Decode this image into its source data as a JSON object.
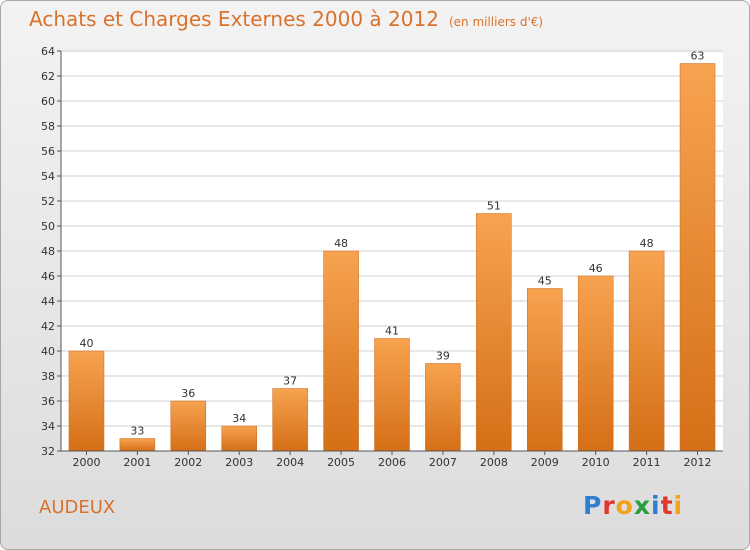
{
  "header": {
    "title": "Achats et Charges Externes 2000 à 2012",
    "subtitle": "(en milliers d'€)"
  },
  "commune": "AUDEUX",
  "logo": {
    "text": "Proxiti",
    "letter_colors": [
      "#2f7fd0",
      "#e0382c",
      "#f2a21b",
      "#2a9d3c",
      "#2f7fd0",
      "#e0382c",
      "#f2a21b"
    ]
  },
  "colors": {
    "bar_light": "#f7a350",
    "bar_dark": "#d56f17",
    "grid": "#d0d0d0",
    "axis": "#555555",
    "title": "#d9722c"
  },
  "chart_data": {
    "type": "bar",
    "title": "Achats et Charges Externes 2000 à 2012",
    "subtitle": "(en milliers d'€)",
    "categories": [
      "2000",
      "2001",
      "2002",
      "2003",
      "2004",
      "2005",
      "2006",
      "2007",
      "2008",
      "2009",
      "2010",
      "2011",
      "2012"
    ],
    "values": [
      40,
      33,
      36,
      34,
      37,
      48,
      41,
      39,
      51,
      45,
      46,
      48,
      63
    ],
    "ylim": [
      32,
      64
    ],
    "yticks": [
      32,
      34,
      36,
      38,
      40,
      42,
      44,
      46,
      48,
      50,
      52,
      54,
      56,
      58,
      60,
      62,
      64
    ],
    "grid": true,
    "xlabel": "",
    "ylabel": ""
  }
}
